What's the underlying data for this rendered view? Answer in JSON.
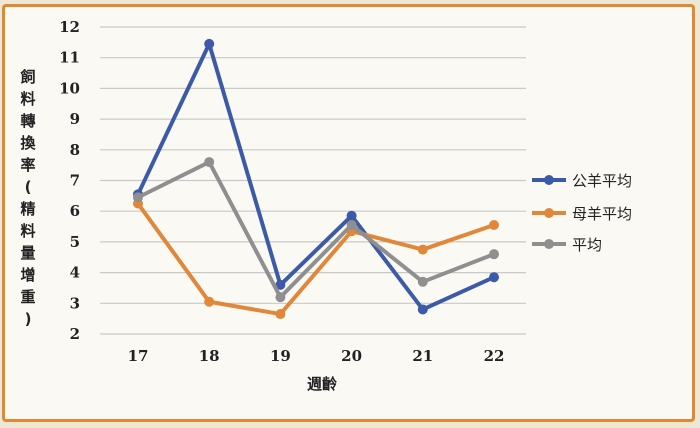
{
  "chart_data": {
    "type": "line",
    "ylabel": "飼料轉換率(精料量增重)",
    "xlabel": "週齡",
    "categories": [
      "17",
      "18",
      "19",
      "20",
      "21",
      "22"
    ],
    "ylim": [
      2,
      12
    ],
    "yticks": [
      2,
      3,
      4,
      5,
      6,
      7,
      8,
      9,
      10,
      11,
      12
    ],
    "grid": true,
    "legend_position": "right",
    "series": [
      {
        "name": "公羊平均",
        "color": "#3b5ba8",
        "values": [
          6.55,
          11.45,
          3.6,
          5.85,
          2.8,
          3.85
        ]
      },
      {
        "name": "母羊平均",
        "color": "#e0873a",
        "values": [
          6.25,
          3.05,
          2.65,
          5.35,
          4.75,
          5.55
        ]
      },
      {
        "name": "平均",
        "color": "#8f8f8f",
        "values": [
          6.45,
          7.6,
          3.2,
          5.55,
          3.7,
          4.6
        ]
      }
    ]
  }
}
